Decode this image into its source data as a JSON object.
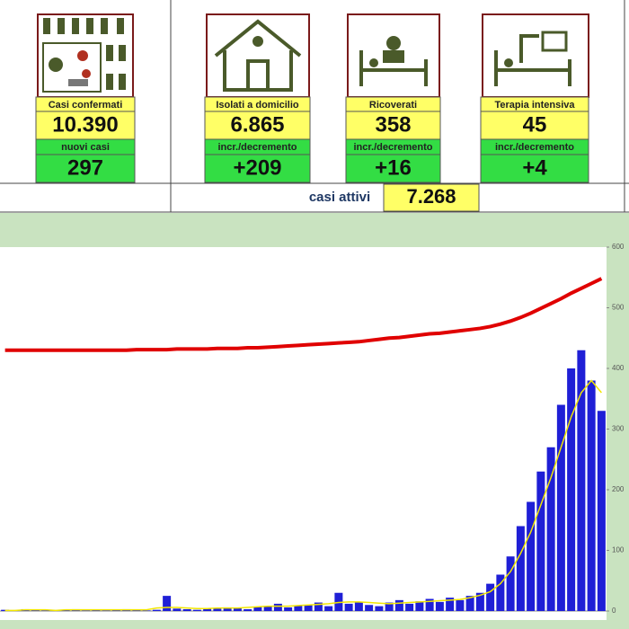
{
  "panels": [
    {
      "label": "Casi confermati",
      "value": "10.390",
      "sub_label": "nuovi casi",
      "sub_value": "297"
    },
    {
      "label": "Isolati a domicilio",
      "value": "6.865",
      "sub_label": "incr./decremento",
      "sub_value": "+209"
    },
    {
      "label": "Ricoverati",
      "value": "358",
      "sub_label": "incr./decremento",
      "sub_value": "+16"
    },
    {
      "label": "Terapia intensiva",
      "value": "45",
      "sub_label": "incr./decremento",
      "sub_value": "+4"
    }
  ],
  "active": {
    "label": "casi attivi",
    "value": "7.268"
  },
  "chart_data": {
    "type": "bar",
    "categories": [
      null,
      null,
      null,
      null,
      null,
      null,
      null,
      null,
      null,
      null,
      null,
      null,
      null,
      null,
      null,
      null,
      null,
      null,
      null,
      null,
      null,
      null,
      null,
      null,
      null,
      null,
      null,
      null,
      null,
      null,
      null,
      null,
      null,
      null,
      null,
      null,
      null,
      null,
      null,
      null,
      null,
      null,
      null,
      null,
      null,
      null,
      null,
      null,
      null,
      null,
      null,
      null,
      null,
      null,
      null,
      null,
      null,
      null,
      null,
      null
    ],
    "series": [
      {
        "type": "bar",
        "color": "#1f1fd6",
        "values": [
          2,
          1,
          3,
          2,
          1,
          0,
          2,
          3,
          1,
          2,
          1,
          2,
          3,
          2,
          1,
          2,
          25,
          4,
          3,
          2,
          5,
          4,
          6,
          5,
          3,
          7,
          8,
          12,
          6,
          9,
          10,
          14,
          8,
          30,
          12,
          15,
          10,
          8,
          14,
          18,
          12,
          16,
          20,
          15,
          22,
          18,
          25,
          30,
          45,
          60,
          90,
          140,
          180,
          230,
          270,
          340,
          400,
          430,
          380,
          330
        ]
      },
      {
        "type": "line",
        "color": "#f2e600",
        "values": [
          1,
          1,
          2,
          2,
          2,
          1,
          2,
          2,
          2,
          2,
          2,
          2,
          2,
          2,
          2,
          5,
          6,
          6,
          5,
          4,
          4,
          5,
          5,
          5,
          6,
          7,
          8,
          8,
          8,
          9,
          10,
          11,
          12,
          14,
          15,
          15,
          14,
          13,
          12,
          13,
          14,
          15,
          16,
          17,
          18,
          19,
          22,
          26,
          32,
          45,
          65,
          95,
          130,
          175,
          220,
          270,
          320,
          360,
          380,
          360
        ]
      },
      {
        "type": "line",
        "color": "#e00000",
        "values": [
          430,
          430,
          430,
          430,
          430,
          430,
          430,
          430,
          430,
          430,
          430,
          430,
          430,
          431,
          431,
          431,
          431,
          432,
          432,
          432,
          432,
          433,
          433,
          433,
          434,
          434,
          435,
          436,
          437,
          438,
          439,
          440,
          441,
          442,
          443,
          444,
          446,
          448,
          450,
          451,
          453,
          455,
          457,
          458,
          460,
          462,
          464,
          466,
          469,
          473,
          478,
          484,
          491,
          499,
          507,
          515,
          524,
          532,
          540,
          548
        ]
      }
    ],
    "ylim": [
      0,
      600
    ],
    "yticks": [
      0,
      100,
      200,
      300,
      400,
      500,
      600
    ]
  }
}
